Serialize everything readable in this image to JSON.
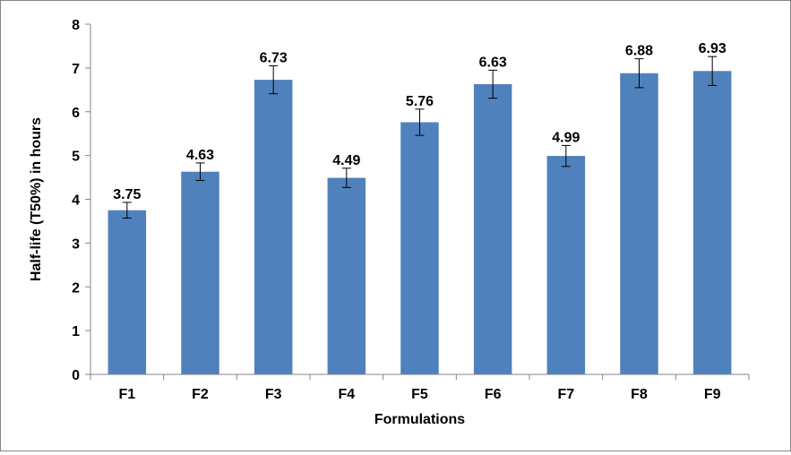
{
  "chart_data": {
    "type": "bar",
    "title": "",
    "xlabel": "Formulations",
    "ylabel": "Half-life (T50%) in hours",
    "categories": [
      "F1",
      "F2",
      "F3",
      "F4",
      "F5",
      "F6",
      "F7",
      "F8",
      "F9"
    ],
    "values": [
      3.75,
      4.63,
      6.73,
      4.49,
      5.76,
      6.63,
      4.99,
      6.88,
      6.93
    ],
    "data_labels": [
      "3.75",
      "4.63",
      "6.73",
      "4.49",
      "5.76",
      "6.63",
      "4.99",
      "6.88",
      "6.93"
    ],
    "error": [
      0.18,
      0.2,
      0.32,
      0.22,
      0.3,
      0.32,
      0.24,
      0.33,
      0.33
    ],
    "ylim": [
      0,
      8
    ],
    "yticks": [
      0,
      1,
      2,
      3,
      4,
      5,
      6,
      7,
      8
    ],
    "ytick_labels": [
      "0",
      "1",
      "2",
      "3",
      "4",
      "5",
      "6",
      "7",
      "8"
    ],
    "grid": false,
    "legend": "none",
    "colors": {
      "bar": "#4F81BD",
      "axis": "#868686",
      "error_bar": "#000000"
    }
  }
}
